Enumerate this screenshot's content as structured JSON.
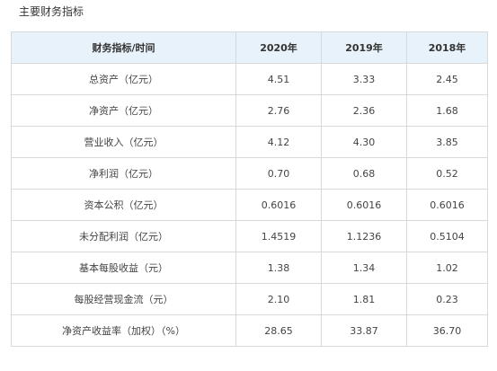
{
  "title": "主要财务指标",
  "table": {
    "headers": [
      "财务指标/时间",
      "2020年",
      "2019年",
      "2018年"
    ],
    "rows": [
      [
        "总资产（亿元）",
        "4.51",
        "3.33",
        "2.45"
      ],
      [
        "净资产（亿元）",
        "2.76",
        "2.36",
        "1.68"
      ],
      [
        "营业收入（亿元）",
        "4.12",
        "4.30",
        "3.85"
      ],
      [
        "净利润（亿元）",
        "0.70",
        "0.68",
        "0.52"
      ],
      [
        "资本公积（亿元）",
        "0.6016",
        "0.6016",
        "0.6016"
      ],
      [
        "未分配利润（亿元）",
        "1.4519",
        "1.1236",
        "0.5104"
      ],
      [
        "基本每股收益（元）",
        "1.38",
        "1.34",
        "1.02"
      ],
      [
        "每股经营现金流（元）",
        "2.10",
        "1.81",
        "0.23"
      ],
      [
        "净资产收益率（加权）（%）",
        "28.65",
        "33.87",
        "36.70"
      ]
    ]
  },
  "colors": {
    "header_bg": "#e8f2fa",
    "border": "#d9d9d9",
    "text": "#333333"
  }
}
